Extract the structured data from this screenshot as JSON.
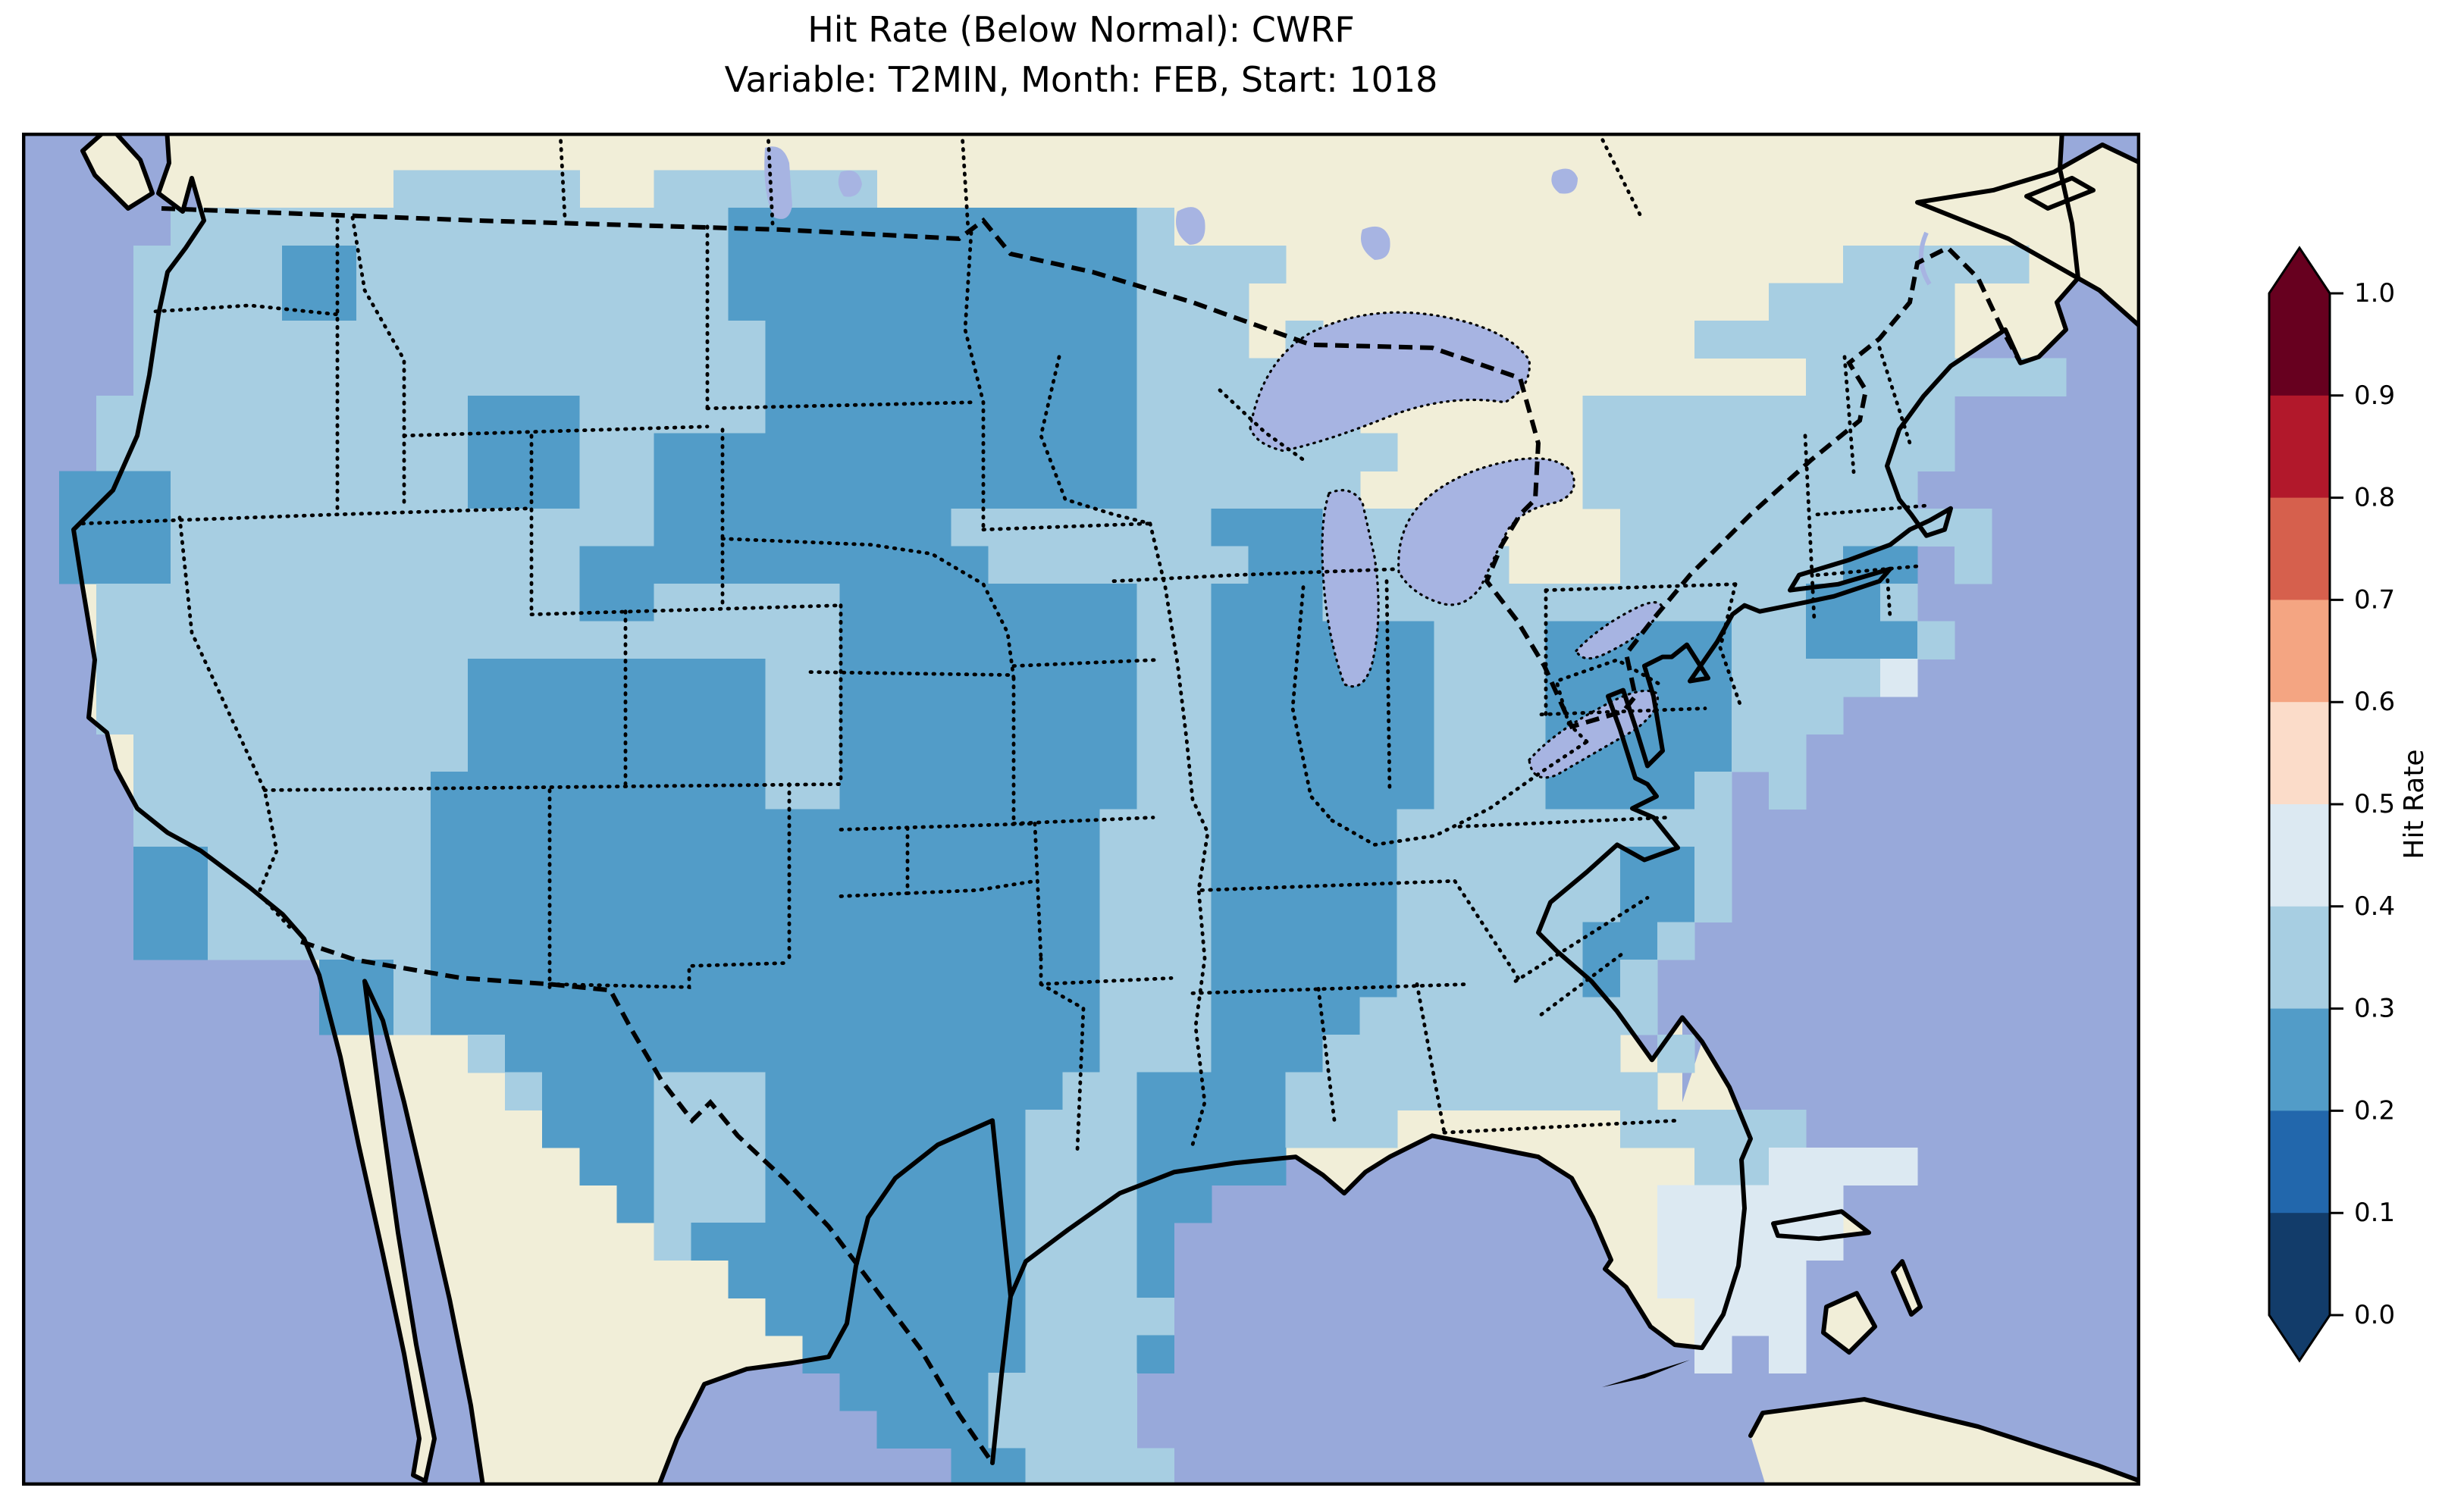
{
  "title": {
    "line1": "Hit Rate (Below Normal): CWRF",
    "line2": "Variable: T2MIN, Month: FEB, Start: 1018"
  },
  "map": {
    "ocean_color": "#98a9da",
    "land_color": "#f1eed8",
    "lake_color": "#a7b4e2",
    "coast_color": "#000000"
  },
  "chart_data": {
    "type": "heatmap",
    "title": "Hit Rate (Below Normal): CWRF",
    "subtitle": "Variable: T2MIN, Month: FEB, Start: 1018",
    "variable": "T2MIN",
    "month": "FEB",
    "start": "1018",
    "model": "CWRF",
    "metric": "Hit Rate (Below Normal)",
    "region": "Contiguous United States",
    "colorbar": {
      "label": "Hit Rate",
      "ticks": [
        "1.0",
        "0.9",
        "0.8",
        "0.7",
        "0.6",
        "0.5",
        "0.4",
        "0.3",
        "0.2",
        "0.1",
        "0.0"
      ],
      "range": [
        0.0,
        1.0
      ],
      "extend": "both",
      "segment_colors_top_to_bottom": [
        "#67001f",
        "#b2182b",
        "#d6604d",
        "#f4a582",
        "#fbdcc9",
        "#dce9f2",
        "#a7cee2",
        "#529cc8",
        "#2267ac",
        "#123c6a"
      ],
      "arrow_top_color": "#67001f",
      "arrow_bottom_color": "#123c6a"
    },
    "bin_colors": {
      "2": "#529cc8",
      "3": "#a7cee2",
      "4": "#dce9f2"
    },
    "value_bins": {
      "2": [
        0.2,
        0.3
      ],
      "3": [
        0.3,
        0.4
      ],
      "4": [
        0.4,
        0.5
      ]
    },
    "grid": {
      "cols": 57,
      "rows": 36,
      "legend": ". = no data, 2 = hit rate 0.2-0.3, 3 = 0.3-0.4, 4 = 0.4-0.5",
      "cells": [
        ".........................................................",
        "..........33333..333333..................................",
        "....333333333333333222222222223..........................",
        "...3333223333333333222222222223333...............33333...",
        "...333322333333333322222222222333..............33333.....",
        "...333333333333333332222222222333.3..........3333333....",
        "...3333333333333333322222222223333333...........3333333....",
        "..3333333333222333332222222222333333......3333333333.....",
        "..33333333332223322222222222223333333.....3333333333.....",
        ".22233333333222332222222222222333333......333333333......",
        ".2223333333333333222222223333333222333.....3333333333.....",
        ".222333333333332222222222233333332223333...33333322 3......",
        "..3333333333333223333322222222332223333333333333223......",
        "..33333333333333333333222222223322222233322222332223......",
        "..3333333333222222223322222222332222223332222233334.......",
        "..33333333332222222233222222223322222233322222333........",
        "...333333333222222223322222222332222223332222233.........",
        "...3333333322222222233222222223322222233322223 3..........",
        "...3333333322222222222222222233322222333333333............",
        "...2233333322222222222222222233322222333333223............",
        "...2233333322222222222222222233322222333333223............",
        "...223333332222222222222222223332222233333223.............",
        "........223222222222222222222333222223333323..............",
        "........223222222222222222222333222233333333..............",
        "............3222222222222222233322233333333 3..............",
        ".............3222333222222223322223333333333..............",
        "..............22233322222223332222333......33333..........",
        "...............2233322222223332222...........334444......",
        "................2333222222233322............44444........",
        ".................32222222223332.............44444........",
        "...................222222223332.............4444.........",
        "....................22222223333..............444.........",
        ".....................2222223332..............4.4.........",
        "......................22223333.............................",
        ".......................2223333.............................",
        ".........................223333............................"
      ]
    }
  }
}
